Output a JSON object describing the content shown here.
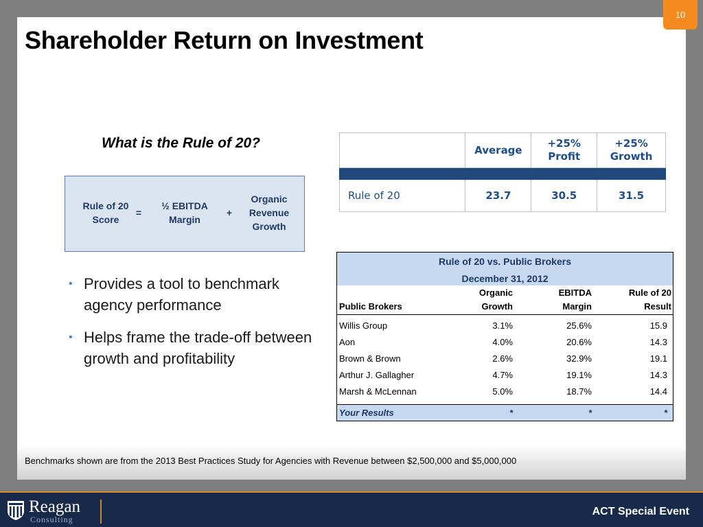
{
  "page_number": "10",
  "title": "Shareholder Return on Investment",
  "question": "What is the Rule of 20?",
  "formula": {
    "score": [
      "Rule of 20",
      "Score"
    ],
    "equals": "=",
    "ebitda": [
      "½ EBITDA",
      "Margin"
    ],
    "plus": "+",
    "organic": [
      "Organic",
      "Revenue",
      "Growth"
    ]
  },
  "bullets": [
    "Provides a tool to benchmark agency performance",
    "Helps frame the trade-off between growth and profitability"
  ],
  "summary_table": {
    "headers": [
      "",
      "Average",
      "+25% Profit",
      "+25% Growth"
    ],
    "row_label": "Rule of 20",
    "values": [
      "23.7",
      "30.5",
      "31.5"
    ]
  },
  "brokers_table": {
    "title": "Rule of 20 vs. Public Brokers",
    "subtitle": "December 31, 2012",
    "columns": {
      "broker": "Public Brokers",
      "organic_top": "Organic",
      "organic_bottom": "Growth",
      "ebitda_top": "EBITDA",
      "ebitda_bottom": "Margin",
      "result_top": "Rule of 20",
      "result_bottom": "Result"
    },
    "rows": [
      {
        "name": "Willis Group",
        "organic": "3.1%",
        "ebitda": "25.6%",
        "result": "15.9"
      },
      {
        "name": "Aon",
        "organic": "4.0%",
        "ebitda": "20.6%",
        "result": "14.3"
      },
      {
        "name": "Brown & Brown",
        "organic": "2.6%",
        "ebitda": "32.9%",
        "result": "19.1"
      },
      {
        "name": "Arthur J. Gallagher",
        "organic": "4.7%",
        "ebitda": "19.1%",
        "result": "14.3"
      },
      {
        "name": "Marsh & McLennan",
        "organic": "5.0%",
        "ebitda": "18.7%",
        "result": "14.4"
      }
    ],
    "your_results": {
      "name": "Your Results",
      "organic": "*",
      "ebitda": "*",
      "result": "*"
    }
  },
  "footnote": "Benchmarks shown are from the 2013 Best Practices Study  for Agencies with Revenue between $2,500,000 and $5,000,000",
  "logo": {
    "name": "Reagan",
    "sub": "Consulting"
  },
  "event": "ACT Special Event",
  "colors": {
    "accent_orange": "#f58a1f",
    "navy": "#172a4a",
    "table_band": "#1f497d",
    "light_blue": "#c6d9f1"
  },
  "icons": {
    "logo": "shield-icon"
  }
}
